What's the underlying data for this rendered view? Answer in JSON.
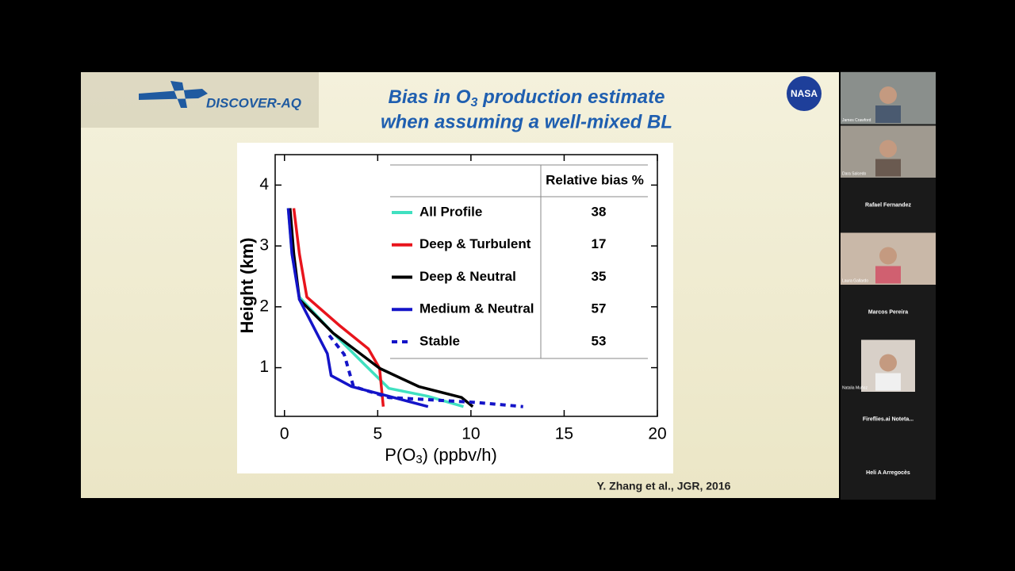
{
  "slide": {
    "logo": "DISCOVER-AQ",
    "agency": "NASA",
    "title_line1": [
      "Bias in O",
      "3",
      " production estimate"
    ],
    "title_line2": "when assuming a well-mixed BL",
    "citation": "Y. Zhang et al., JGR, 2016"
  },
  "chart_data": {
    "type": "line",
    "x_label": [
      "P(O",
      "3",
      ") (ppbv/h)"
    ],
    "y_label": "Height (km)",
    "xlim": [
      -0.5,
      20
    ],
    "ylim": [
      0.2,
      4.5
    ],
    "xticks": [
      0,
      5,
      10,
      15,
      20
    ],
    "yticks": [
      1,
      2,
      3,
      4
    ],
    "table_header": "Relative bias %",
    "series": [
      {
        "name": "All Profile",
        "color": "#40e0c0",
        "bias": 38,
        "dashed": false,
        "x": [
          0.2,
          0.4,
          0.8,
          2.6,
          4.3,
          5.6,
          7.7,
          9.6
        ],
        "values": [
          3.62,
          2.87,
          2.16,
          1.57,
          1.05,
          0.66,
          0.53,
          0.36
        ]
      },
      {
        "name": "Deep & Turbulent",
        "color": "#e8141c",
        "bias": 17,
        "dashed": false,
        "x": [
          0.5,
          0.8,
          1.2,
          3.0,
          4.5,
          5.1,
          5.3
        ],
        "values": [
          3.62,
          2.87,
          2.16,
          1.68,
          1.31,
          0.99,
          0.36
        ]
      },
      {
        "name": "Deep & Neutral",
        "color": "#000000",
        "bias": 35,
        "dashed": false,
        "x": [
          0.3,
          0.5,
          0.8,
          2.6,
          5.1,
          7.2,
          9.5,
          10.1
        ],
        "values": [
          3.62,
          2.87,
          2.12,
          1.57,
          0.99,
          0.69,
          0.51,
          0.36
        ]
      },
      {
        "name": "Medium & Neutral",
        "color": "#1414c8",
        "bias": 57,
        "dashed": false,
        "x": [
          0.2,
          0.4,
          0.8,
          2.3,
          2.5,
          3.6,
          5.6,
          7.7
        ],
        "values": [
          3.62,
          2.87,
          2.12,
          1.23,
          0.87,
          0.69,
          0.53,
          0.36
        ]
      },
      {
        "name": "Stable",
        "color": "#1414c8",
        "bias": 53,
        "dashed": true,
        "x": [
          2.4,
          3.2,
          3.7,
          5.6,
          10.2,
          12.8
        ],
        "values": [
          1.53,
          1.22,
          0.69,
          0.51,
          0.43,
          0.36
        ]
      }
    ]
  },
  "participants": [
    {
      "name": "James Crawford",
      "video": true
    },
    {
      "name": "Dara Salcedo",
      "video": true
    },
    {
      "name": "Rafael Fernandez",
      "video": false
    },
    {
      "name": "Laura Gallardo",
      "video": true
    },
    {
      "name": "Marcos Pereira",
      "video": false
    },
    {
      "name": "Natalia Muñoz",
      "video": true
    },
    {
      "name": "Fireflies.ai  Noteta...",
      "video": false
    },
    {
      "name": "Heli A Arregocès",
      "video": false
    }
  ]
}
